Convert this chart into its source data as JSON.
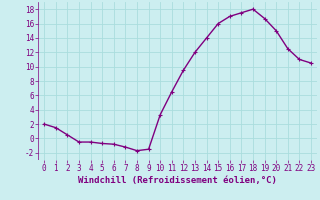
{
  "x": [
    0,
    1,
    2,
    3,
    4,
    5,
    6,
    7,
    8,
    9,
    10,
    11,
    12,
    13,
    14,
    15,
    16,
    17,
    18,
    19,
    20,
    21,
    22,
    23
  ],
  "y": [
    2,
    1.5,
    0.5,
    -0.5,
    -0.5,
    -0.7,
    -0.8,
    -1.2,
    -1.7,
    -1.5,
    3.3,
    6.5,
    9.5,
    12,
    14,
    16,
    17,
    17.5,
    18,
    16.7,
    15,
    12.5,
    11,
    10.5
  ],
  "line_color": "#800080",
  "marker": "+",
  "marker_size": 3,
  "linewidth": 1.0,
  "xlabel": "Windchill (Refroidissement éolien,°C)",
  "xlabel_fontsize": 6.5,
  "xlim": [
    -0.5,
    23.5
  ],
  "ylim": [
    -3,
    19
  ],
  "yticks": [
    -2,
    0,
    2,
    4,
    6,
    8,
    10,
    12,
    14,
    16,
    18
  ],
  "xticks": [
    0,
    1,
    2,
    3,
    4,
    5,
    6,
    7,
    8,
    9,
    10,
    11,
    12,
    13,
    14,
    15,
    16,
    17,
    18,
    19,
    20,
    21,
    22,
    23
  ],
  "background_color": "#cceef0",
  "grid_color": "#aadddd",
  "tick_fontsize": 5.5,
  "title": ""
}
